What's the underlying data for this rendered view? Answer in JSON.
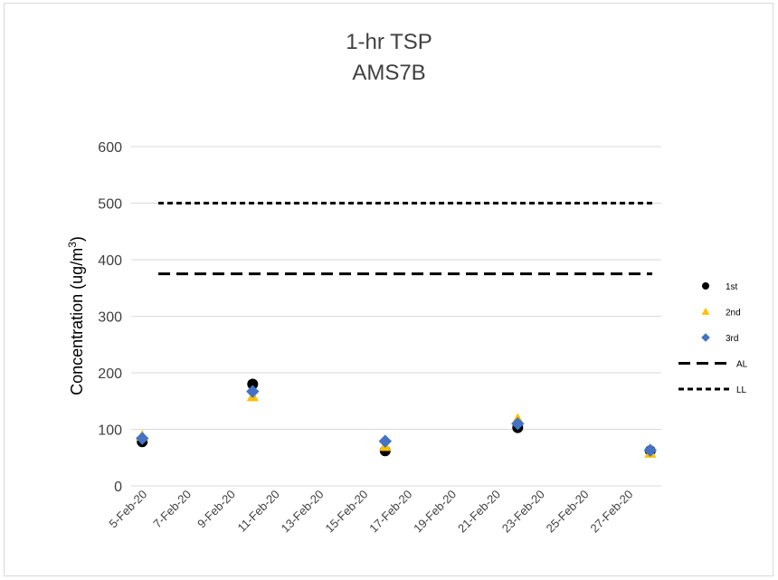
{
  "chart_data": {
    "type": "scatter",
    "title": "1-hr TSP",
    "subtitle": "AMS7B",
    "ylabel": "Concentration (ug/m",
    "ylabel_sup": "3",
    "ylabel_tail": ")",
    "xlabel": "",
    "ylim": [
      0,
      600
    ],
    "yticks": [
      0,
      100,
      200,
      300,
      400,
      500,
      600
    ],
    "x_tick_labels": [
      "5-Feb-20",
      "7-Feb-20",
      "9-Feb-20",
      "11-Feb-20",
      "13-Feb-20",
      "15-Feb-20",
      "17-Feb-20",
      "19-Feb-20",
      "21-Feb-20",
      "23-Feb-20",
      "25-Feb-20",
      "27-Feb-20"
    ],
    "x_range": [
      "5-Feb-20",
      "28-Feb-20"
    ],
    "grid": "horizontal",
    "legend_position": "right",
    "series": [
      {
        "name": "1st",
        "marker": "circle",
        "color": "#000000",
        "points": [
          {
            "x": "5-Feb-20",
            "y": 78
          },
          {
            "x": "10-Feb-20",
            "y": 180
          },
          {
            "x": "16-Feb-20",
            "y": 62
          },
          {
            "x": "22-Feb-20",
            "y": 103
          },
          {
            "x": "28-Feb-20",
            "y": 62
          }
        ]
      },
      {
        "name": "2nd",
        "marker": "triangle",
        "color": "#ffc000",
        "points": [
          {
            "x": "5-Feb-20",
            "y": 88
          },
          {
            "x": "10-Feb-20",
            "y": 158
          },
          {
            "x": "16-Feb-20",
            "y": 70
          },
          {
            "x": "22-Feb-20",
            "y": 118
          },
          {
            "x": "28-Feb-20",
            "y": 58
          }
        ]
      },
      {
        "name": "3rd",
        "marker": "diamond",
        "color": "#4472c4",
        "points": [
          {
            "x": "5-Feb-20",
            "y": 84
          },
          {
            "x": "10-Feb-20",
            "y": 167
          },
          {
            "x": "16-Feb-20",
            "y": 79
          },
          {
            "x": "22-Feb-20",
            "y": 110
          },
          {
            "x": "28-Feb-20",
            "y": 63
          }
        ]
      }
    ],
    "reference_lines": [
      {
        "name": "AL",
        "y": 375,
        "style": "long-dash",
        "color": "#000000"
      },
      {
        "name": "LL",
        "y": 500,
        "style": "short-dash",
        "color": "#000000"
      }
    ]
  }
}
